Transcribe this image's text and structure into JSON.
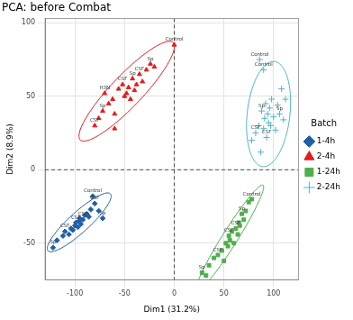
{
  "chart_data": {
    "type": "scatter",
    "title": "PCA: before Combat",
    "x_label": "Dim1 (31.2%)",
    "y_label": "Dim2 (8.9%)",
    "xlim": [
      -130,
      125
    ],
    "ylim": [
      -75,
      103
    ],
    "xticks": [
      -100,
      -50,
      0,
      50,
      100
    ],
    "yticks": [
      -50,
      0,
      50,
      100
    ],
    "grid": true,
    "legend": "right",
    "legend_title": "Batch",
    "series": [
      {
        "name": "1-4h",
        "color": "#1f5fa8",
        "marker": "diamond",
        "x": [
          -122,
          -118,
          -112,
          -110,
          -106,
          -104,
          -102,
          -100,
          -99,
          -97,
          -96,
          -95,
          -94,
          -92,
          -90,
          -88,
          -86,
          -84,
          -80,
          -76,
          -72,
          -82
        ],
        "values": [
          -53,
          -48,
          -45,
          -42,
          -44,
          -40,
          -41,
          -38,
          -36,
          -39,
          -35,
          -33,
          -37,
          -34,
          -31,
          -30,
          -32,
          -27,
          -23,
          -28,
          -33,
          -18
        ],
        "point_labels": [
          "Sp",
          null,
          null,
          "CSF",
          null,
          null,
          null,
          null,
          "CSF",
          null,
          null,
          null,
          null,
          "CSF",
          null,
          null,
          null,
          null,
          "CSF",
          null,
          "Sp",
          "Control"
        ]
      },
      {
        "name": "2-4h",
        "color": "#e41a1c",
        "marker": "triangle",
        "x": [
          -80,
          -76,
          -72,
          -70,
          -66,
          -62,
          -60,
          -56,
          -52,
          -50,
          -48,
          -46,
          -44,
          -42,
          -40,
          -38,
          -35,
          -32,
          -28,
          -24,
          -20,
          -60,
          0
        ],
        "values": [
          30,
          35,
          40,
          52,
          45,
          48,
          38,
          55,
          58,
          50,
          52,
          56,
          48,
          62,
          54,
          58,
          65,
          60,
          68,
          72,
          70,
          28,
          85
        ],
        "point_labels": [
          "CSF",
          null,
          "Sp",
          "H3N",
          null,
          null,
          null,
          null,
          "CSF",
          null,
          null,
          null,
          null,
          "Sp",
          null,
          null,
          "CSF",
          null,
          null,
          "Sp",
          null,
          null,
          "Control"
        ]
      },
      {
        "name": "1-24h",
        "color": "#4daf4a",
        "marker": "square",
        "x": [
          28,
          32,
          35,
          40,
          44,
          48,
          50,
          52,
          54,
          55,
          56,
          58,
          60,
          62,
          64,
          65,
          66,
          68,
          70,
          72,
          75,
          78
        ],
        "values": [
          -70,
          -72,
          -65,
          -60,
          -58,
          -55,
          -62,
          -50,
          -52,
          -45,
          -48,
          -42,
          -50,
          -40,
          -44,
          -36,
          -38,
          -30,
          -34,
          -28,
          -22,
          -20
        ],
        "point_labels": [
          "Sp",
          null,
          null,
          null,
          "CSF",
          null,
          null,
          null,
          null,
          "CSF",
          null,
          null,
          null,
          "CSF",
          null,
          null,
          null,
          "Sp",
          null,
          null,
          null,
          "Control"
        ]
      },
      {
        "name": "2-24h",
        "color": "#4fb3c8",
        "marker": "cross",
        "x": [
          78,
          82,
          85,
          87,
          88,
          90,
          91,
          92,
          93,
          94,
          95,
          96,
          97,
          98,
          100,
          102,
          104,
          106,
          108,
          110,
          112,
          86,
          90
        ],
        "values": [
          20,
          25,
          30,
          12,
          40,
          28,
          35,
          45,
          22,
          38,
          32,
          42,
          30,
          48,
          36,
          27,
          44,
          38,
          55,
          34,
          48,
          75,
          68
        ],
        "point_labels": [
          null,
          "CSF",
          null,
          null,
          "Sp",
          null,
          null,
          null,
          "CSF",
          null,
          null,
          null,
          null,
          null,
          null,
          null,
          null,
          "Sp",
          null,
          null,
          null,
          "Control",
          "Control"
        ]
      }
    ]
  }
}
